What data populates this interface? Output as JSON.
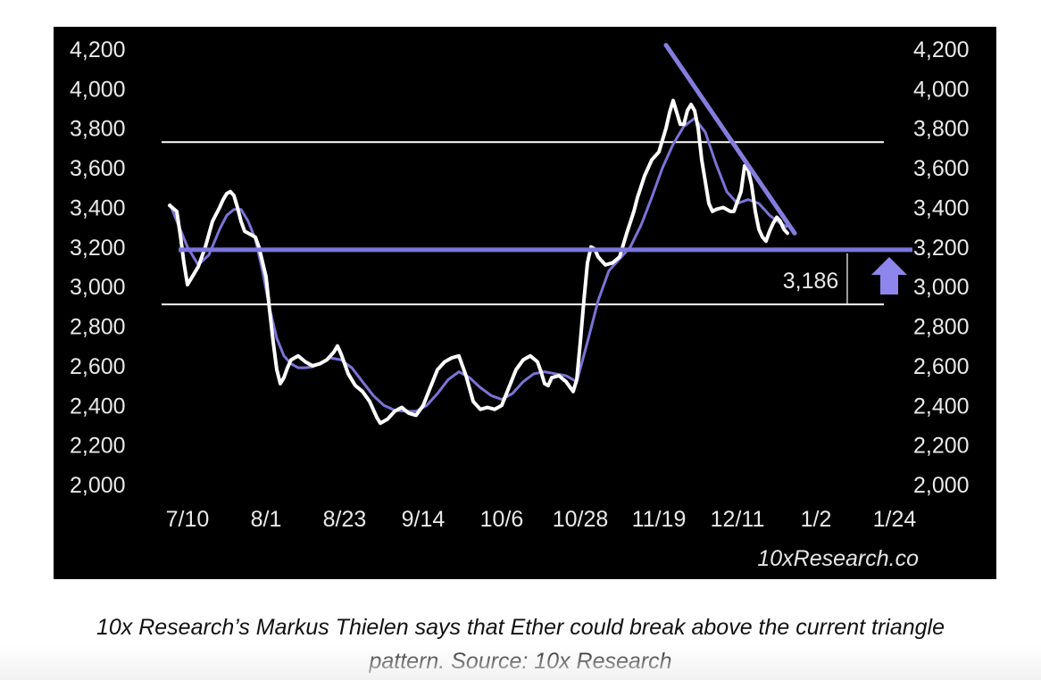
{
  "colors": {
    "panel_bg": "#000000",
    "price_line": "#ffffff",
    "moving_average": "#7b74d6",
    "support_line": "#7c74dc",
    "resistance_trendline": "#857dde",
    "arrow": "#8e86ec",
    "horizontal_range_lines": "#ffffff",
    "caption_text": "#111111"
  },
  "chart_data": {
    "type": "line",
    "title": "",
    "xlabel": "",
    "ylabel": "",
    "ylim": [
      2000,
      4200
    ],
    "y_ticks": [
      "4,200",
      "4,000",
      "3,800",
      "3,600",
      "3,400",
      "3,200",
      "3,000",
      "2,800",
      "2,600",
      "2,400",
      "2,200",
      "2,000"
    ],
    "x_ticks": [
      "7/10",
      "8/1",
      "8/23",
      "9/14",
      "10/6",
      "10/28",
      "11/19",
      "12/11",
      "1/2",
      "1/24"
    ],
    "x_tick_days": [
      0,
      22,
      44,
      66,
      88,
      110,
      132,
      154,
      176,
      198
    ],
    "grid": false,
    "legend": "none",
    "series": [
      {
        "kind": "price",
        "points": [
          [
            -5,
            3410
          ],
          [
            -3,
            3380
          ],
          [
            -2,
            3260
          ],
          [
            -1,
            3120
          ],
          [
            0,
            3010
          ],
          [
            1,
            3040
          ],
          [
            3,
            3100
          ],
          [
            5,
            3200
          ],
          [
            7,
            3330
          ],
          [
            9,
            3400
          ],
          [
            10,
            3440
          ],
          [
            11,
            3470
          ],
          [
            12,
            3480
          ],
          [
            13,
            3460
          ],
          [
            14,
            3400
          ],
          [
            15,
            3330
          ],
          [
            16,
            3280
          ],
          [
            18,
            3260
          ],
          [
            19,
            3250
          ],
          [
            20,
            3200
          ],
          [
            22,
            3050
          ],
          [
            23,
            2880
          ],
          [
            24,
            2720
          ],
          [
            25,
            2580
          ],
          [
            26,
            2510
          ],
          [
            27,
            2540
          ],
          [
            28,
            2590
          ],
          [
            29,
            2630
          ],
          [
            31,
            2650
          ],
          [
            33,
            2620
          ],
          [
            35,
            2600
          ],
          [
            37,
            2610
          ],
          [
            39,
            2630
          ],
          [
            41,
            2670
          ],
          [
            42,
            2700
          ],
          [
            43,
            2660
          ],
          [
            45,
            2560
          ],
          [
            47,
            2500
          ],
          [
            49,
            2470
          ],
          [
            51,
            2420
          ],
          [
            53,
            2340
          ],
          [
            54,
            2310
          ],
          [
            56,
            2330
          ],
          [
            58,
            2370
          ],
          [
            60,
            2390
          ],
          [
            62,
            2360
          ],
          [
            64,
            2350
          ],
          [
            66,
            2400
          ],
          [
            68,
            2490
          ],
          [
            70,
            2580
          ],
          [
            72,
            2620
          ],
          [
            74,
            2640
          ],
          [
            76,
            2650
          ],
          [
            78,
            2550
          ],
          [
            80,
            2420
          ],
          [
            82,
            2380
          ],
          [
            84,
            2390
          ],
          [
            86,
            2380
          ],
          [
            88,
            2400
          ],
          [
            90,
            2490
          ],
          [
            92,
            2580
          ],
          [
            94,
            2630
          ],
          [
            96,
            2650
          ],
          [
            98,
            2620
          ],
          [
            99,
            2570
          ],
          [
            100,
            2510
          ],
          [
            101,
            2500
          ],
          [
            102,
            2540
          ],
          [
            104,
            2550
          ],
          [
            106,
            2520
          ],
          [
            108,
            2470
          ],
          [
            109,
            2530
          ],
          [
            110,
            2720
          ],
          [
            111,
            2930
          ],
          [
            112,
            3120
          ],
          [
            113,
            3200
          ],
          [
            114,
            3190
          ],
          [
            115,
            3150
          ],
          [
            117,
            3110
          ],
          [
            119,
            3120
          ],
          [
            121,
            3150
          ],
          [
            123,
            3270
          ],
          [
            125,
            3380
          ],
          [
            126,
            3450
          ],
          [
            128,
            3560
          ],
          [
            130,
            3640
          ],
          [
            132,
            3680
          ],
          [
            134,
            3800
          ],
          [
            135,
            3880
          ],
          [
            136,
            3940
          ],
          [
            137,
            3880
          ],
          [
            138,
            3820
          ],
          [
            139,
            3820
          ],
          [
            140,
            3890
          ],
          [
            141,
            3920
          ],
          [
            142,
            3890
          ],
          [
            143,
            3800
          ],
          [
            144,
            3640
          ],
          [
            145,
            3530
          ],
          [
            146,
            3420
          ],
          [
            147,
            3380
          ],
          [
            148,
            3390
          ],
          [
            150,
            3400
          ],
          [
            152,
            3380
          ],
          [
            153,
            3380
          ],
          [
            155,
            3480
          ],
          [
            156,
            3610
          ],
          [
            157,
            3590
          ],
          [
            158,
            3510
          ],
          [
            159,
            3380
          ],
          [
            160,
            3290
          ],
          [
            161,
            3250
          ],
          [
            162,
            3230
          ],
          [
            163,
            3280
          ],
          [
            164,
            3320
          ],
          [
            165,
            3350
          ],
          [
            166,
            3330
          ],
          [
            167,
            3290
          ],
          [
            168,
            3270
          ]
        ]
      },
      {
        "kind": "moving_average",
        "points": [
          [
            -5,
            3420
          ],
          [
            0,
            3200
          ],
          [
            3,
            3110
          ],
          [
            6,
            3160
          ],
          [
            9,
            3290
          ],
          [
            11,
            3360
          ],
          [
            13,
            3390
          ],
          [
            15,
            3390
          ],
          [
            17,
            3330
          ],
          [
            19,
            3240
          ],
          [
            21,
            3080
          ],
          [
            23,
            2890
          ],
          [
            25,
            2740
          ],
          [
            27,
            2650
          ],
          [
            29,
            2610
          ],
          [
            31,
            2590
          ],
          [
            33,
            2590
          ],
          [
            35,
            2595
          ],
          [
            37,
            2610
          ],
          [
            40,
            2640
          ],
          [
            43,
            2630
          ],
          [
            46,
            2590
          ],
          [
            49,
            2520
          ],
          [
            52,
            2450
          ],
          [
            55,
            2400
          ],
          [
            58,
            2375
          ],
          [
            61,
            2370
          ],
          [
            64,
            2370
          ],
          [
            67,
            2400
          ],
          [
            70,
            2460
          ],
          [
            73,
            2530
          ],
          [
            76,
            2570
          ],
          [
            79,
            2540
          ],
          [
            82,
            2490
          ],
          [
            85,
            2450
          ],
          [
            88,
            2430
          ],
          [
            91,
            2460
          ],
          [
            94,
            2520
          ],
          [
            97,
            2560
          ],
          [
            100,
            2570
          ],
          [
            103,
            2560
          ],
          [
            106,
            2550
          ],
          [
            109,
            2520
          ],
          [
            112,
            2720
          ],
          [
            115,
            2930
          ],
          [
            118,
            3080
          ],
          [
            121,
            3140
          ],
          [
            124,
            3200
          ],
          [
            127,
            3310
          ],
          [
            130,
            3450
          ],
          [
            133,
            3600
          ],
          [
            136,
            3720
          ],
          [
            139,
            3810
          ],
          [
            142,
            3850
          ],
          [
            145,
            3780
          ],
          [
            148,
            3620
          ],
          [
            151,
            3480
          ],
          [
            154,
            3420
          ],
          [
            157,
            3440
          ],
          [
            160,
            3420
          ],
          [
            163,
            3360
          ],
          [
            166,
            3320
          ],
          [
            168,
            3300
          ]
        ]
      }
    ],
    "support_level": 3186,
    "horizontal_range_levels": [
      3730,
      2910
    ],
    "resistance_trendline": [
      [
        134,
        4220
      ],
      [
        170,
        3270
      ]
    ],
    "annotations": [
      "3,186"
    ],
    "watermark": "10xResearch.co"
  },
  "caption": {
    "line1": "10x Research’s Markus Thielen says that Ether could break above the current triangle",
    "line2": "pattern. Source: 10x Research"
  }
}
